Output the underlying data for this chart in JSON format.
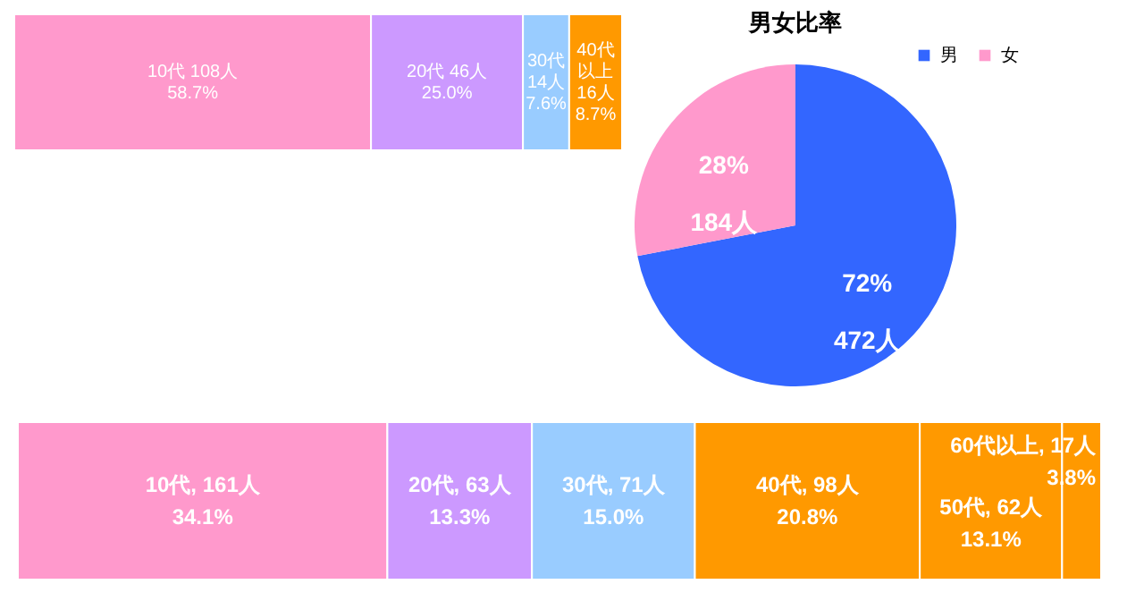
{
  "chart_data": [
    {
      "type": "pie",
      "title": "男女比率",
      "categories": [
        "男",
        "女"
      ],
      "values": [
        472,
        184
      ],
      "value_labels": [
        "72%\n472人",
        "28%\n184人"
      ],
      "colors": [
        "#3366ff",
        "#ff99cc"
      ],
      "legend": "top right"
    },
    {
      "type": "bar",
      "orientation": "horizontal",
      "stacked": true,
      "categories": [
        null
      ],
      "series": [
        {
          "color": "#ff99cc",
          "values": [
            108
          ],
          "value_labels": [
            "10代 108人\n58.7%"
          ]
        },
        {
          "color": "#cc99ff",
          "values": [
            46
          ],
          "value_labels": [
            "20代 46人\n25.0%"
          ]
        },
        {
          "color": "#99ccff",
          "values": [
            14
          ],
          "value_labels": [
            "30代\n14人\n7.6%"
          ]
        },
        {
          "color": "#ff9900",
          "values": [
            16
          ],
          "value_labels": [
            "40代以上\n16人\n8.7%"
          ]
        }
      ]
    },
    {
      "type": "bar",
      "orientation": "horizontal",
      "stacked": true,
      "categories": [
        null
      ],
      "series": [
        {
          "color": "#ff99cc",
          "values": [
            161
          ],
          "value_labels": [
            "10代, 161人\n34.1%"
          ]
        },
        {
          "color": "#cc99ff",
          "values": [
            63
          ],
          "value_labels": [
            "20代, 63人\n13.3%"
          ]
        },
        {
          "color": "#99ccff",
          "values": [
            71
          ],
          "value_labels": [
            "30代, 71人\n15.0%"
          ]
        },
        {
          "color": "#ff9900",
          "values": [
            98
          ],
          "value_labels": [
            "40代, 98人\n20.8%"
          ]
        },
        {
          "color": "#ff9900",
          "values": [
            62
          ],
          "value_labels": [
            "50代, 62人\n13.1%"
          ]
        },
        {
          "color": "#ff9900",
          "values": [
            17
          ],
          "value_labels": [
            "60代以上, 17人\n3.8%"
          ]
        }
      ]
    }
  ]
}
